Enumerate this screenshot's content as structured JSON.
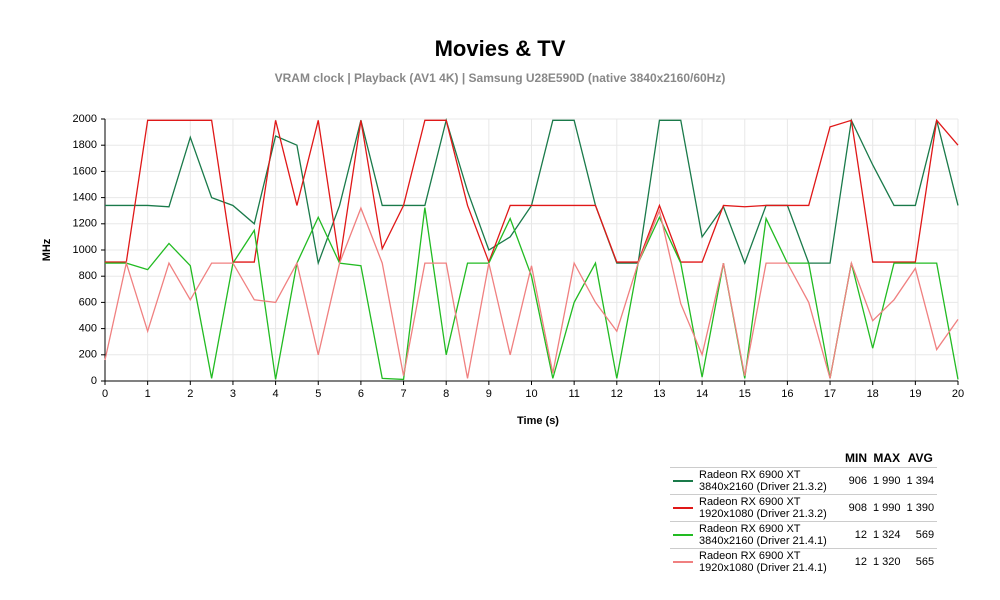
{
  "chart_data": {
    "type": "line",
    "title": "Movies & TV",
    "subtitle": "VRAM clock |  Playback (AV1 4K) | Samsung U28E590D (native 3840x2160/60Hz)",
    "x_label": "Time (s)",
    "y_label": "MHz",
    "x": [
      0,
      0.5,
      1,
      1.5,
      2,
      2.5,
      3,
      3.5,
      4,
      4.5,
      5,
      5.5,
      6,
      6.5,
      7,
      7.5,
      8,
      8.5,
      9,
      9.5,
      10,
      10.5,
      11,
      11.5,
      12,
      12.5,
      13,
      13.5,
      14,
      14.5,
      15,
      15.5,
      16,
      16.5,
      17,
      17.5,
      18,
      18.5,
      19,
      19.5,
      20
    ],
    "xlim": [
      0,
      20
    ],
    "xticks": [
      0,
      1,
      2,
      3,
      4,
      5,
      6,
      7,
      8,
      9,
      10,
      11,
      12,
      13,
      14,
      15,
      16,
      17,
      18,
      19,
      20
    ],
    "ylim": [
      0,
      2000
    ],
    "yticks": [
      0,
      200,
      400,
      600,
      800,
      1000,
      1200,
      1400,
      1600,
      1800,
      2000
    ],
    "grid": true,
    "stat_columns": [
      "MIN",
      "MAX",
      "AVG"
    ],
    "series": [
      {
        "name": "Radeon RX 6900 XT\n3840x2160 (Driver 21.3.2)",
        "color": "#1a7a4a",
        "values": [
          1340,
          1340,
          1340,
          1330,
          1860,
          1400,
          1340,
          1200,
          1870,
          1800,
          900,
          1340,
          1990,
          1340,
          1340,
          1340,
          1990,
          1450,
          1000,
          1100,
          1340,
          1990,
          1990,
          1340,
          900,
          900,
          1990,
          1990,
          1100,
          1330,
          900,
          1340,
          1340,
          900,
          900,
          1990,
          1650,
          1340,
          1340,
          1990,
          1340
        ],
        "stats": [
          906,
          {
            "value": 1990,
            "label": "1 990"
          },
          {
            "value": 1394,
            "label": "1 394"
          }
        ]
      },
      {
        "name": "Radeon RX 6900 XT\n1920x1080 (Driver 21.3.2)",
        "color": "#e01818",
        "values": [
          908,
          908,
          1990,
          1990,
          1990,
          1990,
          908,
          908,
          1990,
          1340,
          1990,
          908,
          1990,
          1010,
          1340,
          1990,
          1990,
          1340,
          908,
          1340,
          1340,
          1340,
          1340,
          1340,
          908,
          908,
          1340,
          908,
          908,
          1340,
          1330,
          1340,
          1340,
          1340,
          1940,
          1990,
          908,
          908,
          908,
          1990,
          1800
        ],
        "stats": [
          908,
          {
            "value": 1990,
            "label": "1 990"
          },
          {
            "value": 1390,
            "label": "1 390"
          }
        ]
      },
      {
        "name": "Radeon RX 6900 XT\n3840x2160 (Driver 21.4.1)",
        "color": "#22bb22",
        "values": [
          900,
          900,
          850,
          1050,
          880,
          20,
          900,
          1150,
          12,
          900,
          1250,
          900,
          880,
          20,
          12,
          1324,
          200,
          900,
          900,
          1240,
          800,
          20,
          600,
          900,
          20,
          900,
          1250,
          900,
          30,
          900,
          20,
          1240,
          900,
          900,
          20,
          900,
          250,
          900,
          900,
          900,
          12
        ],
        "stats": [
          12,
          {
            "value": 1324,
            "label": "1 324"
          },
          569
        ]
      },
      {
        "name": "Radeon RX 6900 XT\n1920x1080 (Driver 21.4.1)",
        "color": "#f08080",
        "values": [
          160,
          900,
          380,
          900,
          620,
          900,
          900,
          620,
          600,
          900,
          200,
          900,
          1320,
          900,
          40,
          900,
          900,
          20,
          900,
          200,
          880,
          60,
          900,
          600,
          380,
          900,
          1300,
          590,
          200,
          900,
          40,
          900,
          900,
          600,
          20,
          900,
          460,
          620,
          860,
          240,
          470
        ],
        "stats": [
          12,
          {
            "value": 1320,
            "label": "1 320"
          },
          565
        ]
      }
    ]
  }
}
